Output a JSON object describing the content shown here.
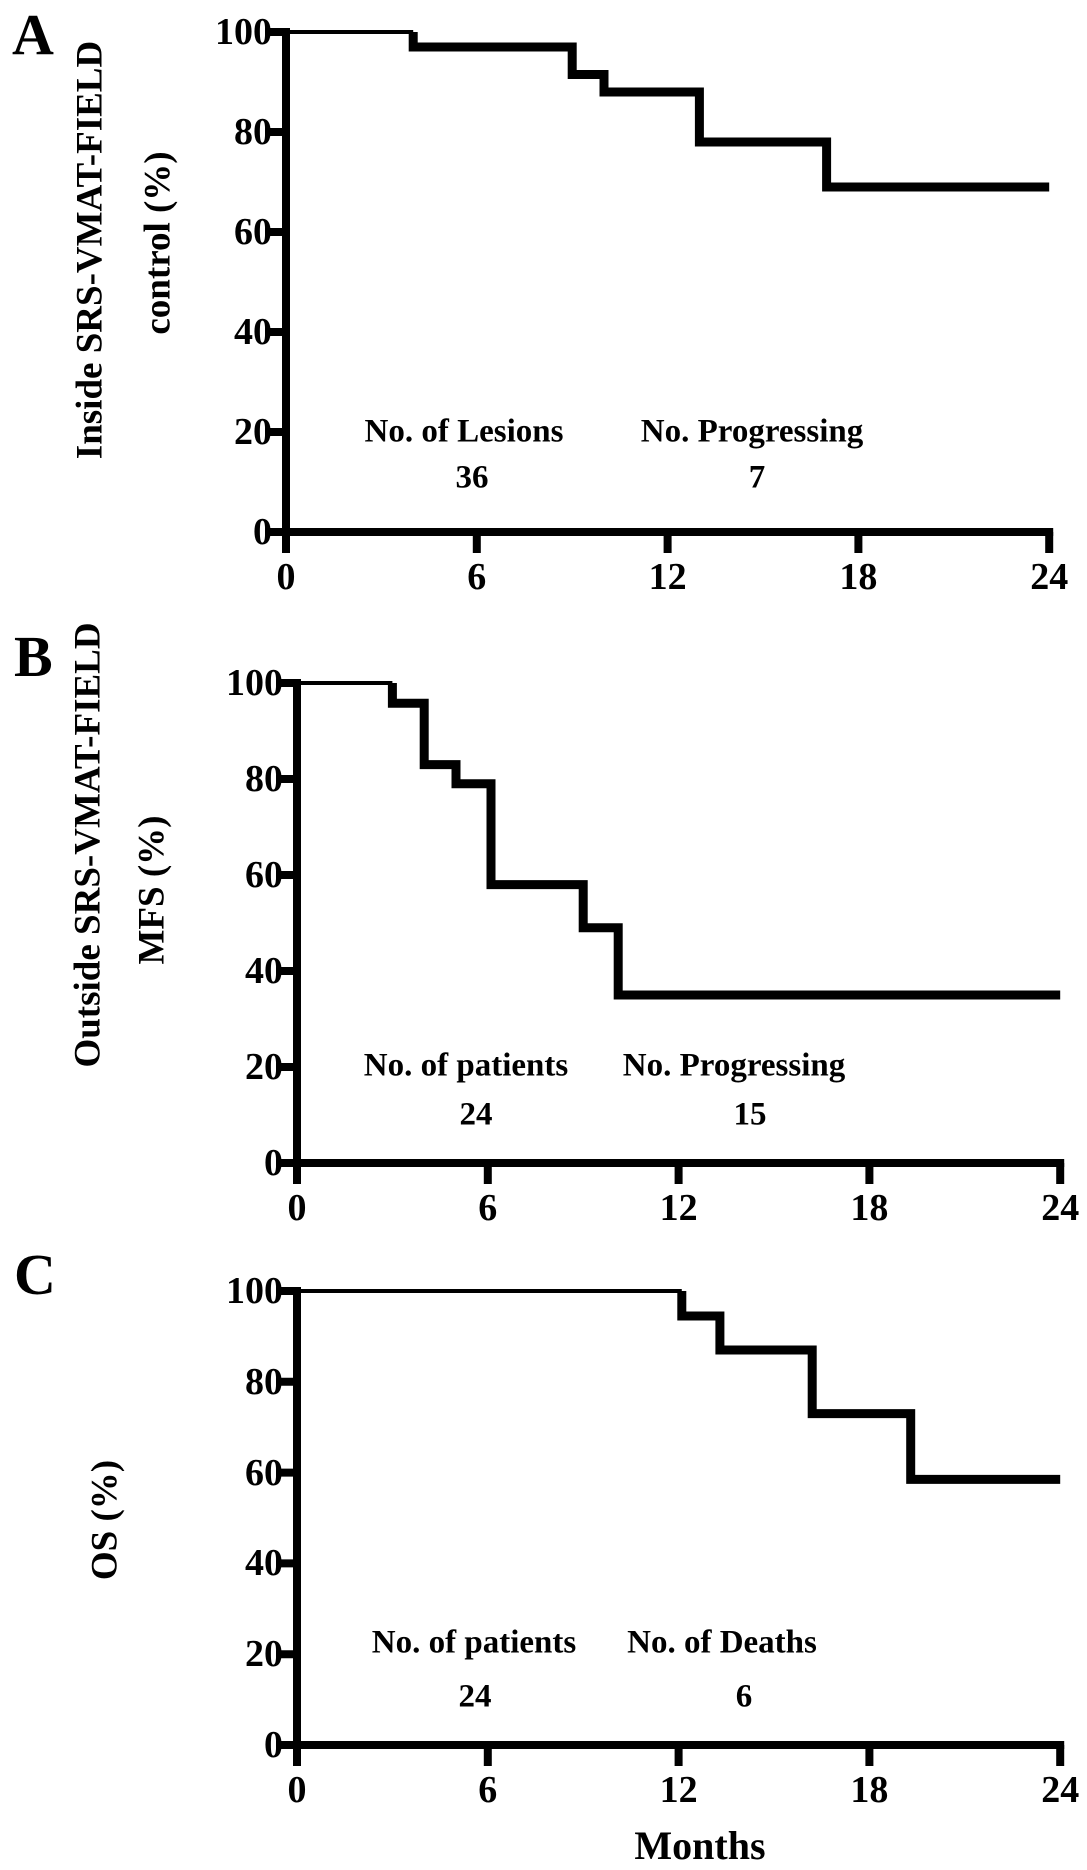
{
  "figure": {
    "x_axis_title": "Months",
    "ink_color": "#000000",
    "background_color": "#ffffff"
  },
  "chart_data": [
    {
      "panel": "A",
      "type": "line",
      "style": "kaplan-meier-step",
      "ylabel_outer": "Inside SRS-VMAT-FIELD",
      "ylabel_inner": "control (%)",
      "xlim": [
        0,
        24
      ],
      "ylim": [
        0,
        100
      ],
      "x_ticks": [
        0,
        6,
        12,
        18,
        24
      ],
      "y_ticks": [
        0,
        20,
        40,
        60,
        80,
        100
      ],
      "grid": false,
      "annotations": {
        "col1_label": "No. of Lesions",
        "col1_value": "36",
        "col2_label": "No. Progressing",
        "col2_value": "7"
      },
      "steps_months_percent": [
        [
          0,
          100
        ],
        [
          4,
          100
        ],
        [
          4,
          97
        ],
        [
          9,
          97
        ],
        [
          9,
          91.5
        ],
        [
          10,
          91.5
        ],
        [
          10,
          88
        ],
        [
          13,
          88
        ],
        [
          13,
          78
        ],
        [
          17,
          78
        ],
        [
          17,
          69
        ],
        [
          24,
          69
        ]
      ]
    },
    {
      "panel": "B",
      "type": "line",
      "style": "kaplan-meier-step",
      "ylabel_outer": "Outside SRS-VMAT-FIELD",
      "ylabel_inner": "MFS (%)",
      "xlim": [
        0,
        24
      ],
      "ylim": [
        0,
        100
      ],
      "x_ticks": [
        0,
        6,
        12,
        18,
        24
      ],
      "y_ticks": [
        0,
        20,
        40,
        60,
        80,
        100
      ],
      "grid": false,
      "annotations": {
        "col1_label": "No. of patients",
        "col1_value": "24",
        "col2_label": "No. Progressing",
        "col2_value": "15"
      },
      "steps_months_percent": [
        [
          0,
          100
        ],
        [
          3,
          100
        ],
        [
          3,
          95.8
        ],
        [
          4,
          95.8
        ],
        [
          4,
          83
        ],
        [
          5,
          83
        ],
        [
          5,
          79
        ],
        [
          6.1,
          79
        ],
        [
          6.1,
          58
        ],
        [
          9,
          58
        ],
        [
          9,
          49
        ],
        [
          10.1,
          49
        ],
        [
          10.1,
          35
        ],
        [
          24,
          35
        ]
      ]
    },
    {
      "panel": "C",
      "type": "line",
      "style": "kaplan-meier-step",
      "ylabel_outer": "",
      "ylabel_inner": "OS (%)",
      "xlim": [
        0,
        24
      ],
      "ylim": [
        0,
        100
      ],
      "x_ticks": [
        0,
        6,
        12,
        18,
        24
      ],
      "y_ticks": [
        0,
        20,
        40,
        60,
        80,
        100
      ],
      "grid": false,
      "annotations": {
        "col1_label": "No. of patients",
        "col1_value": "24",
        "col2_label": "No. of Deaths",
        "col2_value": "6"
      },
      "steps_months_percent": [
        [
          0,
          100
        ],
        [
          12.1,
          100
        ],
        [
          12.1,
          94.5
        ],
        [
          13.3,
          94.5
        ],
        [
          13.3,
          87
        ],
        [
          16.2,
          87
        ],
        [
          16.2,
          73
        ],
        [
          19.3,
          73
        ],
        [
          19.3,
          58.5
        ],
        [
          24,
          58.5
        ]
      ]
    }
  ]
}
